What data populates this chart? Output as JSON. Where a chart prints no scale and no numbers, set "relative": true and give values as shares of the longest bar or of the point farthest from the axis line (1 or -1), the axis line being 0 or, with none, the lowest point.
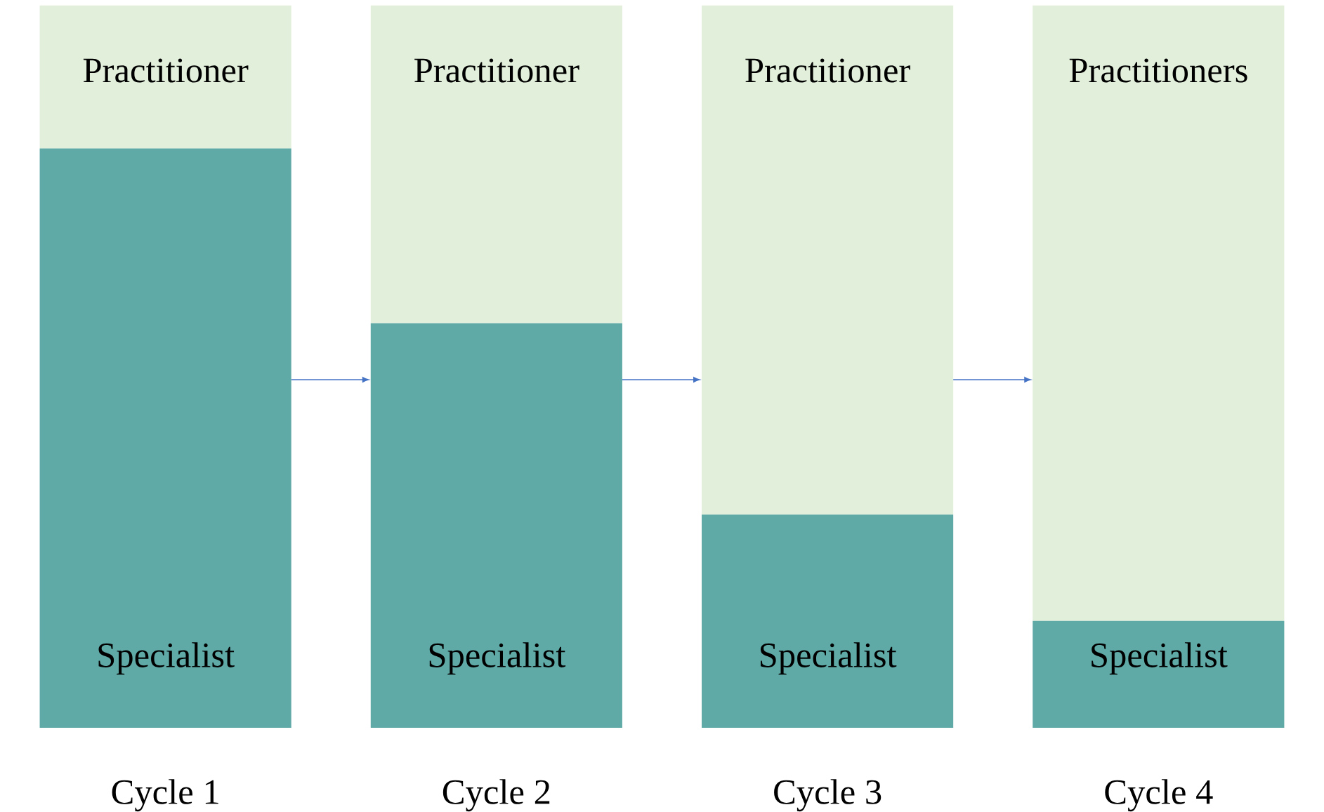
{
  "chart_data": {
    "type": "bar",
    "stacked": true,
    "relative": true,
    "categories": [
      "Cycle 1",
      "Cycle 2",
      "Cycle 3",
      "Cycle 4"
    ],
    "series": [
      {
        "color": "#5faaa6",
        "values": [
          0.802,
          0.56,
          0.295,
          0.148
        ]
      },
      {
        "color": "#e2efda",
        "values": [
          0.198,
          0.44,
          0.705,
          0.852
        ]
      }
    ],
    "annotations": [
      "Practitioner",
      "Practitioner",
      "Practitioner",
      "Practitioners",
      "Specialist",
      "Specialist",
      "Specialist",
      "Specialist"
    ]
  }
}
